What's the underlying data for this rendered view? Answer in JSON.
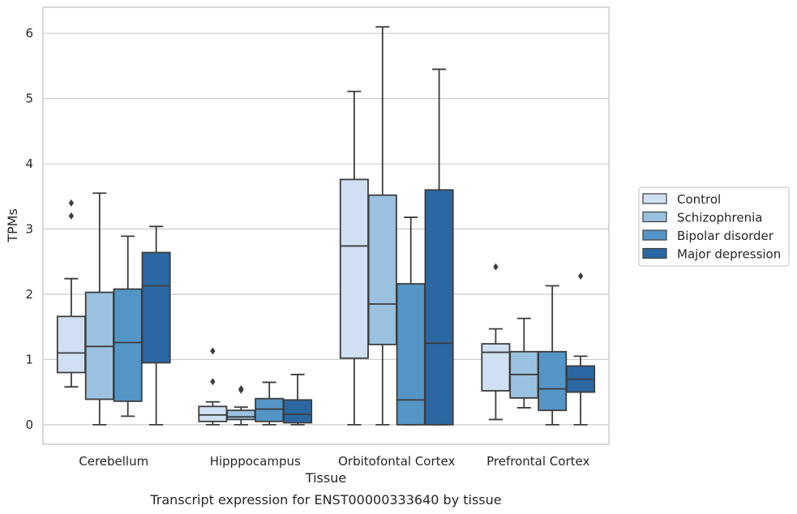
{
  "chart_data": {
    "type": "box",
    "xlabel": "Tissue",
    "ylabel": "TPMs",
    "caption": "Transcript expression for ENST00000333640 by tissue",
    "ylim": [
      -0.3,
      6.4
    ],
    "yticks": [
      0,
      1,
      2,
      3,
      4,
      5,
      6
    ],
    "grid": "horizontal",
    "legend_position": "right",
    "categories": [
      "Cerebellum",
      "Hipppocampus",
      "Orbitofontal Cortex",
      "Prefrontal Cortex"
    ],
    "series": [
      {
        "name": "Control",
        "color": "#d0e0f2",
        "boxes": [
          {
            "whislo": 0.58,
            "q1": 0.8,
            "med": 1.1,
            "q3": 1.66,
            "whishi": 2.24,
            "fliers": [
              3.4,
              3.2
            ]
          },
          {
            "whislo": 0.0,
            "q1": 0.05,
            "med": 0.15,
            "q3": 0.28,
            "whishi": 0.35,
            "fliers": [
              1.13,
              0.66
            ]
          },
          {
            "whislo": 0.0,
            "q1": 1.02,
            "med": 2.74,
            "q3": 3.76,
            "whishi": 5.11,
            "fliers": []
          },
          {
            "whislo": 0.08,
            "q1": 0.52,
            "med": 1.11,
            "q3": 1.24,
            "whishi": 1.47,
            "fliers": [
              2.42
            ]
          }
        ]
      },
      {
        "name": "Schizophrenia",
        "color": "#9ac1df",
        "boxes": [
          {
            "whislo": 0.0,
            "q1": 0.39,
            "med": 1.2,
            "q3": 2.03,
            "whishi": 3.55,
            "fliers": []
          },
          {
            "whislo": 0.0,
            "q1": 0.08,
            "med": 0.12,
            "q3": 0.22,
            "whishi": 0.27,
            "fliers": [
              0.55,
              0.53
            ]
          },
          {
            "whislo": 0.0,
            "q1": 1.23,
            "med": 1.85,
            "q3": 3.52,
            "whishi": 6.1,
            "fliers": []
          },
          {
            "whislo": 0.26,
            "q1": 0.41,
            "med": 0.77,
            "q3": 1.12,
            "whishi": 1.63,
            "fliers": []
          }
        ]
      },
      {
        "name": "Bipolar disorder",
        "color": "#5495c7",
        "boxes": [
          {
            "whislo": 0.13,
            "q1": 0.36,
            "med": 1.26,
            "q3": 2.08,
            "whishi": 2.89,
            "fliers": []
          },
          {
            "whislo": 0.0,
            "q1": 0.05,
            "med": 0.24,
            "q3": 0.4,
            "whishi": 0.65,
            "fliers": []
          },
          {
            "whislo": 0.0,
            "q1": 0.0,
            "med": 0.38,
            "q3": 2.16,
            "whishi": 3.18,
            "fliers": []
          },
          {
            "whislo": 0.0,
            "q1": 0.22,
            "med": 0.55,
            "q3": 1.12,
            "whishi": 2.13,
            "fliers": []
          }
        ]
      },
      {
        "name": "Major depression",
        "color": "#2b68a3",
        "boxes": [
          {
            "whislo": 0.0,
            "q1": 0.95,
            "med": 2.13,
            "q3": 2.64,
            "whishi": 3.04,
            "fliers": []
          },
          {
            "whislo": 0.0,
            "q1": 0.03,
            "med": 0.16,
            "q3": 0.38,
            "whishi": 0.77,
            "fliers": []
          },
          {
            "whislo": 0.0,
            "q1": 0.0,
            "med": 1.25,
            "q3": 3.6,
            "whishi": 5.45,
            "fliers": []
          },
          {
            "whislo": 0.0,
            "q1": 0.5,
            "med": 0.7,
            "q3": 0.9,
            "whishi": 1.05,
            "fliers": [
              2.28
            ]
          }
        ]
      }
    ]
  }
}
